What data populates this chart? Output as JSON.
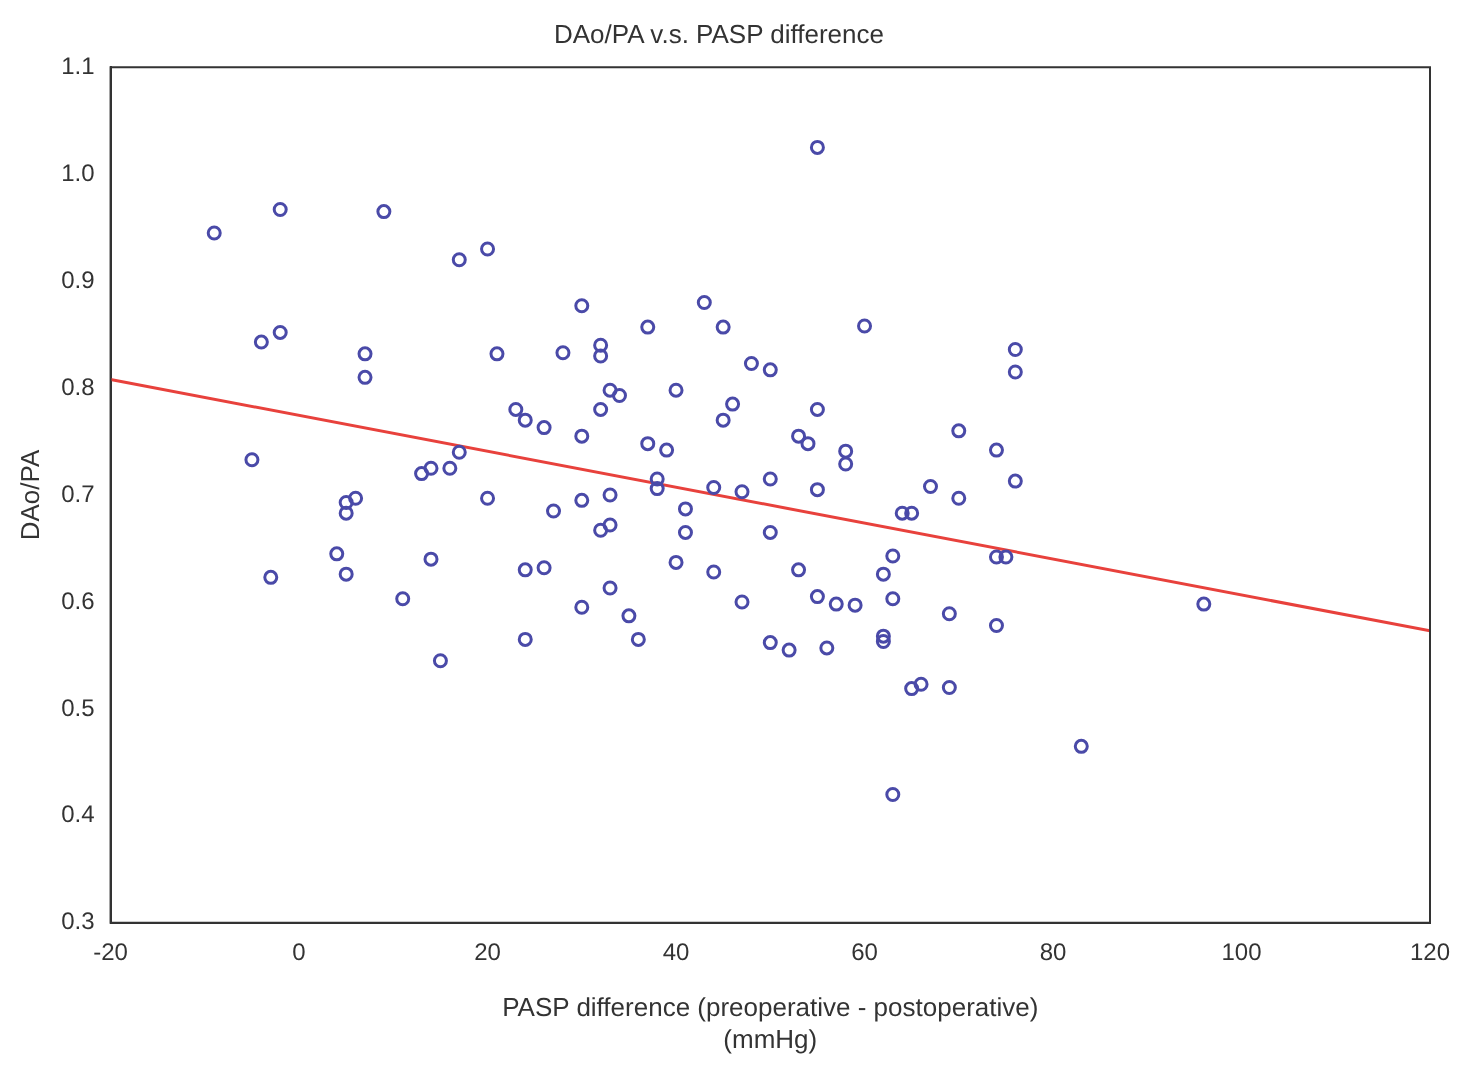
{
  "chart_data": {
    "type": "scatter",
    "title": "DAo/PA v.s. PASP difference",
    "xlabel": "PASP difference (preoperative - postoperative)\n(mmHg)",
    "ylabel": "DAo/PA",
    "xlim": [
      -20,
      120
    ],
    "xticks": [
      -20,
      0,
      20,
      40,
      60,
      80,
      100,
      120
    ],
    "ylim": [
      0.3,
      1.1
    ],
    "yticks": [
      0.3,
      0.4,
      0.5,
      0.6,
      0.7,
      0.8,
      0.9,
      {
        "value": 1.0,
        "label": "1.0"
      },
      1.1
    ],
    "grid": false,
    "legend": false,
    "series": [
      {
        "marker": "circle",
        "color": "#4a4aa8",
        "x": [
          -9,
          -2,
          -2,
          -4,
          -5,
          -3,
          4,
          5,
          5,
          5,
          6,
          7,
          7,
          9,
          11,
          13,
          14,
          14,
          15,
          16,
          17,
          17,
          20,
          20,
          21,
          23,
          24,
          24,
          24,
          26,
          26,
          27,
          28,
          30,
          30,
          30,
          30,
          32,
          32,
          32,
          32,
          33,
          33,
          33,
          33,
          34,
          35,
          36,
          37,
          37,
          38,
          38,
          39,
          40,
          40,
          41,
          41,
          43,
          44,
          44,
          45,
          45,
          46,
          47,
          47,
          48,
          50,
          50,
          50,
          50,
          52,
          53,
          53,
          54,
          55,
          55,
          55,
          55,
          56,
          57,
          58,
          58,
          59,
          60,
          62,
          62,
          62,
          63,
          63,
          63,
          64,
          65,
          65,
          66,
          67,
          69,
          69,
          70,
          70,
          74,
          74,
          75,
          74,
          76,
          76,
          76,
          83,
          96
        ],
        "values": [
          0.945,
          0.967,
          0.852,
          0.843,
          0.733,
          0.623,
          0.645,
          0.626,
          0.683,
          0.693,
          0.697,
          0.832,
          0.81,
          0.965,
          0.603,
          0.72,
          0.725,
          0.64,
          0.545,
          0.725,
          0.74,
          0.92,
          0.93,
          0.697,
          0.832,
          0.78,
          0.77,
          0.63,
          0.565,
          0.763,
          0.632,
          0.685,
          0.833,
          0.877,
          0.755,
          0.695,
          0.595,
          0.84,
          0.83,
          0.78,
          0.667,
          0.798,
          0.7,
          0.672,
          0.613,
          0.793,
          0.587,
          0.565,
          0.857,
          0.748,
          0.715,
          0.706,
          0.742,
          0.798,
          0.637,
          0.687,
          0.665,
          0.88,
          0.707,
          0.628,
          0.857,
          0.77,
          0.785,
          0.6,
          0.703,
          0.823,
          0.817,
          0.715,
          0.665,
          0.562,
          0.555,
          0.755,
          0.63,
          0.748,
          1.025,
          0.78,
          0.705,
          0.605,
          0.557,
          0.598,
          0.741,
          0.729,
          0.597,
          0.858,
          0.626,
          0.568,
          0.563,
          0.643,
          0.603,
          0.42,
          0.683,
          0.683,
          0.519,
          0.523,
          0.708,
          0.589,
          0.52,
          0.76,
          0.697,
          0.742,
          0.642,
          0.642,
          0.578,
          0.836,
          0.815,
          0.713,
          0.465,
          0.598
        ]
      },
      {
        "type": "line",
        "color": "#e8413c",
        "x": [
          -20,
          120
        ],
        "values": [
          0.808,
          0.573
        ]
      }
    ]
  }
}
